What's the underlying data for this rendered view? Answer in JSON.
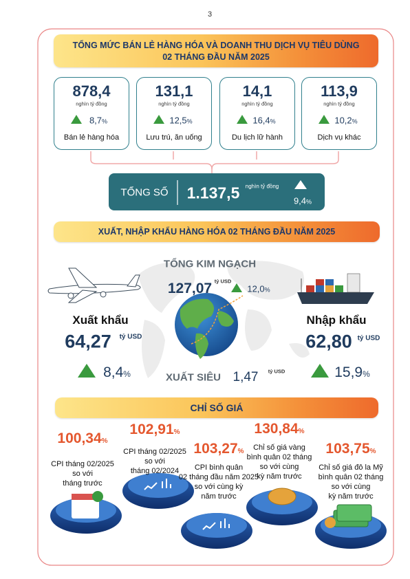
{
  "page_number": "3",
  "retail": {
    "title_lines": [
      "TỔNG MỨC BÁN LẺ HÀNG HÓA VÀ DOANH THU DỊCH VỤ TIÊU DÙNG",
      "02 THÁNG ĐẦU NĂM 2025"
    ],
    "items": [
      {
        "value": "878,4",
        "unit": "nghìn tỷ đồng",
        "growth": "8,7",
        "growth_unit": "%",
        "label": "Bán lẻ hàng hóa"
      },
      {
        "value": "131,1",
        "unit": "nghìn tỷ đồng",
        "growth": "12,5",
        "growth_unit": "%",
        "label": "Lưu trú, ăn uống"
      },
      {
        "value": "14,1",
        "unit": "nghìn tỷ đồng",
        "growth": "16,4",
        "growth_unit": "%",
        "label": "Du lịch lữ hành"
      },
      {
        "value": "113,9",
        "unit": "nghìn tỷ đồng",
        "growth": "10,2",
        "growth_unit": "%",
        "label": "Dịch vụ khác"
      }
    ],
    "total": {
      "label": "TỔNG SỐ",
      "value": "1.137,5",
      "unit": "nghìn tỷ đồng",
      "growth": "9,4",
      "growth_unit": "%"
    }
  },
  "trade": {
    "title": "XUẤT, NHẬP KHẨU HÀNG HÓA 02 THÁNG ĐẦU NĂM 2025",
    "total": {
      "label": "TỔNG KIM NGẠCH",
      "value": "127,07",
      "unit": "tỷ USD",
      "growth": "12,0",
      "growth_unit": "%"
    },
    "export": {
      "label": "Xuất khẩu",
      "value": "64,27",
      "unit": "tỷ USD",
      "growth": "8,4",
      "growth_unit": "%"
    },
    "import": {
      "label": "Nhập khẩu",
      "value": "62,80",
      "unit": "tỷ USD",
      "growth": "15,9",
      "growth_unit": "%"
    },
    "surplus": {
      "label": "XUẤT SIÊU",
      "value": "1,47",
      "unit": "tỷ USD"
    }
  },
  "prices": {
    "title": "CHỈ SỐ GIÁ",
    "items": [
      {
        "value": "100,34",
        "unit": "%",
        "description": [
          "CPI tháng 02/2025",
          "so với",
          "tháng trước"
        ]
      },
      {
        "value": "102,91",
        "unit": "%",
        "description": [
          "CPI tháng 02/2025",
          "so với",
          "tháng 02/2024"
        ]
      },
      {
        "value": "103,27",
        "unit": "%",
        "description": [
          "CPI bình quân",
          "02 tháng đầu năm 2025",
          "so với cùng kỳ",
          "năm trước"
        ]
      },
      {
        "value": "130,84",
        "unit": "%",
        "description": [
          "Chỉ số giá vàng",
          "bình quân 02 tháng",
          "so với cùng",
          "kỳ năm trước"
        ]
      },
      {
        "value": "103,75",
        "unit": "%",
        "description": [
          "Chỉ số giá đô la Mỹ",
          "bình quân 02 tháng",
          "so với cùng",
          "kỳ năm trước"
        ]
      }
    ]
  }
}
